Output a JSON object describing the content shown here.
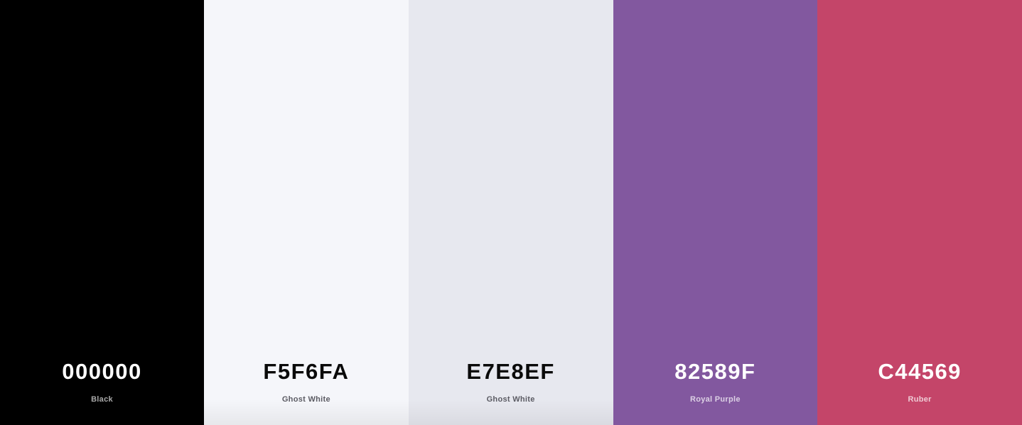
{
  "palette": {
    "swatches": [
      {
        "hex": "000000",
        "name": "Black",
        "color": "#000000"
      },
      {
        "hex": "F5F6FA",
        "name": "Ghost White",
        "color": "#F5F6FA"
      },
      {
        "hex": "E7E8EF",
        "name": "Ghost White",
        "color": "#E7E8EF"
      },
      {
        "hex": "82589F",
        "name": "Royal Purple",
        "color": "#82589F"
      },
      {
        "hex": "C44569",
        "name": "Ruber",
        "color": "#C44569"
      }
    ]
  }
}
